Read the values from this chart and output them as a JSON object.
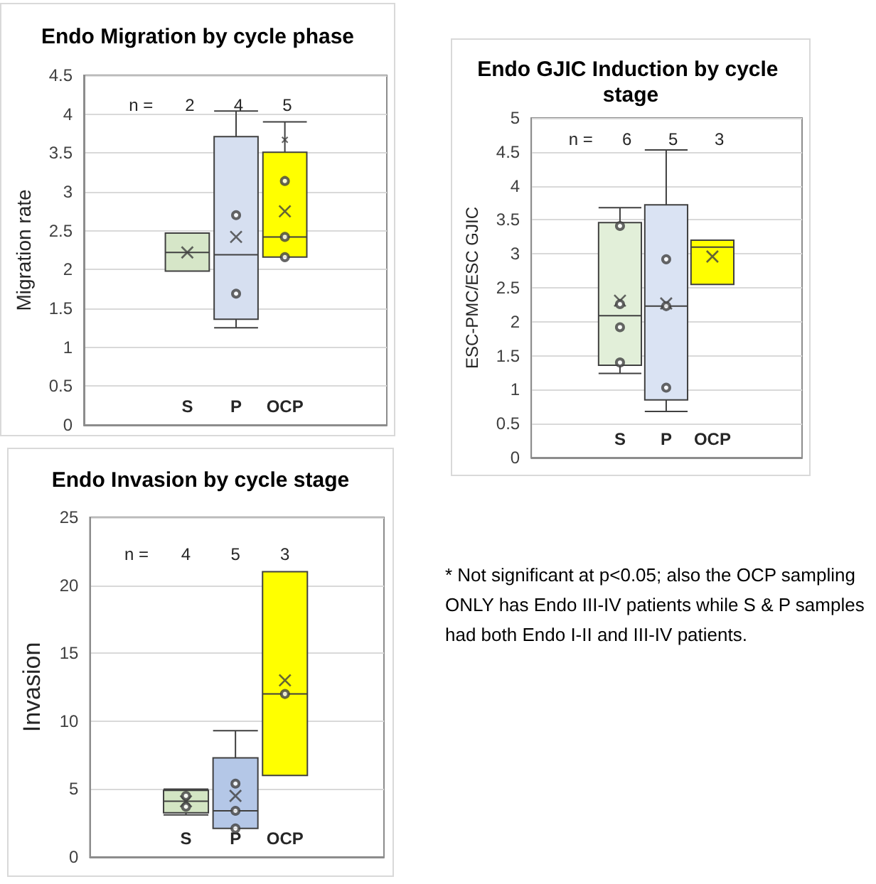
{
  "chart_data": [
    {
      "type": "box",
      "title": "Endo Migration by cycle phase",
      "ylabel": "Migration rate",
      "categories": [
        "S",
        "P",
        "OCP"
      ],
      "series": [
        {
          "type": "box",
          "colors": [
            "#d6e6c8",
            "#d6dff0",
            "#ffff00"
          ],
          "boxes": [
            {
              "low": 1.98,
              "q1": 1.98,
              "median": 2.22,
              "q3": 2.47,
              "high": 2.47,
              "mean": 2.22
            },
            {
              "low": 1.25,
              "q1": 1.36,
              "median": 2.19,
              "q3": 3.71,
              "high": 4.04,
              "mean": 2.42
            },
            {
              "low": 2.16,
              "q1": 2.16,
              "median": 2.42,
              "q3": 3.51,
              "high": 3.9,
              "mean": 2.75
            }
          ]
        },
        {
          "type": "scatter",
          "x": [
            "P",
            "P",
            "OCP",
            "OCP",
            "OCP"
          ],
          "values": [
            2.7,
            1.69,
            3.14,
            2.42,
            2.16
          ],
          "color": "#404040",
          "marker": "circle"
        },
        {
          "type": "scatter",
          "x": [
            "OCP"
          ],
          "values": [
            3.67
          ],
          "color": "#404040",
          "marker": "cross"
        }
      ],
      "ylim": [
        0,
        4.5
      ],
      "yticks": [
        0,
        0.5,
        1,
        1.5,
        2,
        2.5,
        3,
        3.5,
        4,
        4.5
      ],
      "grid": "y",
      "annotations": [
        "n =",
        "2",
        "4",
        "5"
      ]
    },
    {
      "type": "box",
      "title": "Endo GJIC Induction by cycle stage",
      "ylabel": "ESC-PMC/ESC GJIC",
      "categories": [
        "S",
        "P",
        "OCP"
      ],
      "series": [
        {
          "type": "box",
          "colors": [
            "#e2efd9",
            "#dae3f3",
            "#ffff00"
          ],
          "boxes": [
            {
              "low": 1.24,
              "q1": 1.36,
              "median": 2.09,
              "q3": 3.46,
              "high": 3.68,
              "mean": 2.31
            },
            {
              "low": 0.68,
              "q1": 0.85,
              "median": 2.23,
              "q3": 3.72,
              "high": 4.53,
              "mean": 2.27
            },
            {
              "low": 2.55,
              "q1": 2.55,
              "median": 3.1,
              "q3": 3.2,
              "high": 3.2,
              "mean": 2.96
            }
          ]
        },
        {
          "type": "scatter",
          "x": [
            "S",
            "S",
            "S",
            "S",
            "P",
            "P",
            "P"
          ],
          "values": [
            3.41,
            2.26,
            1.92,
            1.4,
            2.92,
            2.23,
            1.03
          ],
          "color": "#404040",
          "marker": "circle"
        }
      ],
      "ylim": [
        0,
        5
      ],
      "yticks": [
        0,
        0.5,
        1,
        1.5,
        2,
        2.5,
        3,
        3.5,
        4,
        4.5,
        5
      ],
      "grid": "y",
      "annotations": [
        "n =",
        "6",
        "5",
        "3"
      ]
    },
    {
      "type": "box",
      "title": "Endo Invasion by cycle stage",
      "ylabel": "Invasion",
      "categories": [
        "S",
        "P",
        "OCP"
      ],
      "series": [
        {
          "type": "box",
          "colors": [
            "#d3e5c3",
            "#b4c7e7",
            "#ffff00"
          ],
          "boxes": [
            {
              "low": 3.1,
              "q1": 3.25,
              "median": 4.1,
              "q3": 4.9,
              "high": 5,
              "mean": 4.1
            },
            {
              "low": 2.1,
              "q1": 2.1,
              "median": 3.4,
              "q3": 7.3,
              "high": 9.3,
              "mean": 4.5
            },
            {
              "low": 6,
              "q1": 6,
              "median": 12,
              "q3": 21,
              "high": 21,
              "mean": 13
            }
          ]
        },
        {
          "type": "scatter",
          "x": [
            "S",
            "S",
            "P",
            "P",
            "P",
            "OCP"
          ],
          "values": [
            4.5,
            3.7,
            5.4,
            3.4,
            2.1,
            12
          ],
          "color": "#404040",
          "marker": "circle"
        }
      ],
      "ylim": [
        0,
        25
      ],
      "yticks": [
        0,
        5,
        10,
        15,
        20,
        25
      ],
      "grid": "y",
      "annotations": [
        "n =",
        "4",
        "5",
        "3"
      ]
    },
    {
      "type": "other",
      "annotations": [
        "* Not significant at p<0.05; also the OCP sampling ONLY has Endo III-IV patients while S & P samples had both Endo I-II and III-IV patients."
      ]
    }
  ]
}
